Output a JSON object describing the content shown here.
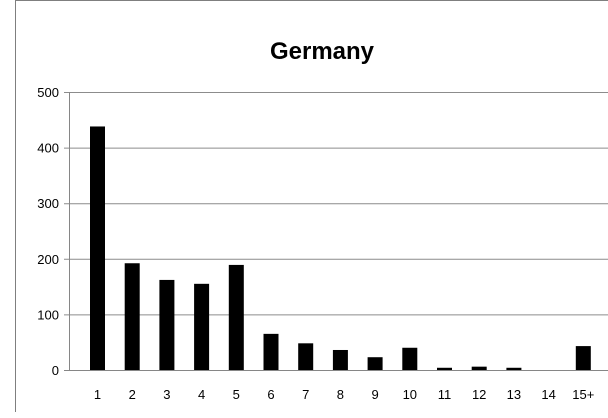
{
  "chart_data": {
    "type": "bar",
    "title": "Germany",
    "xlabel": "",
    "ylabel": "",
    "categories": [
      "1",
      "2",
      "3",
      "4",
      "5",
      "6",
      "7",
      "8",
      "9",
      "10",
      "11",
      "12",
      "13",
      "14",
      "15+"
    ],
    "values": [
      438,
      192,
      162,
      155,
      189,
      65,
      48,
      36,
      23,
      40,
      4,
      6,
      4,
      0,
      43
    ],
    "ylim": [
      0,
      500
    ],
    "yticks": [
      0,
      100,
      200,
      300,
      400,
      500
    ],
    "grid": true,
    "legend": "none",
    "bar_color": "#000000",
    "grid_color": "#8c8c8c"
  }
}
